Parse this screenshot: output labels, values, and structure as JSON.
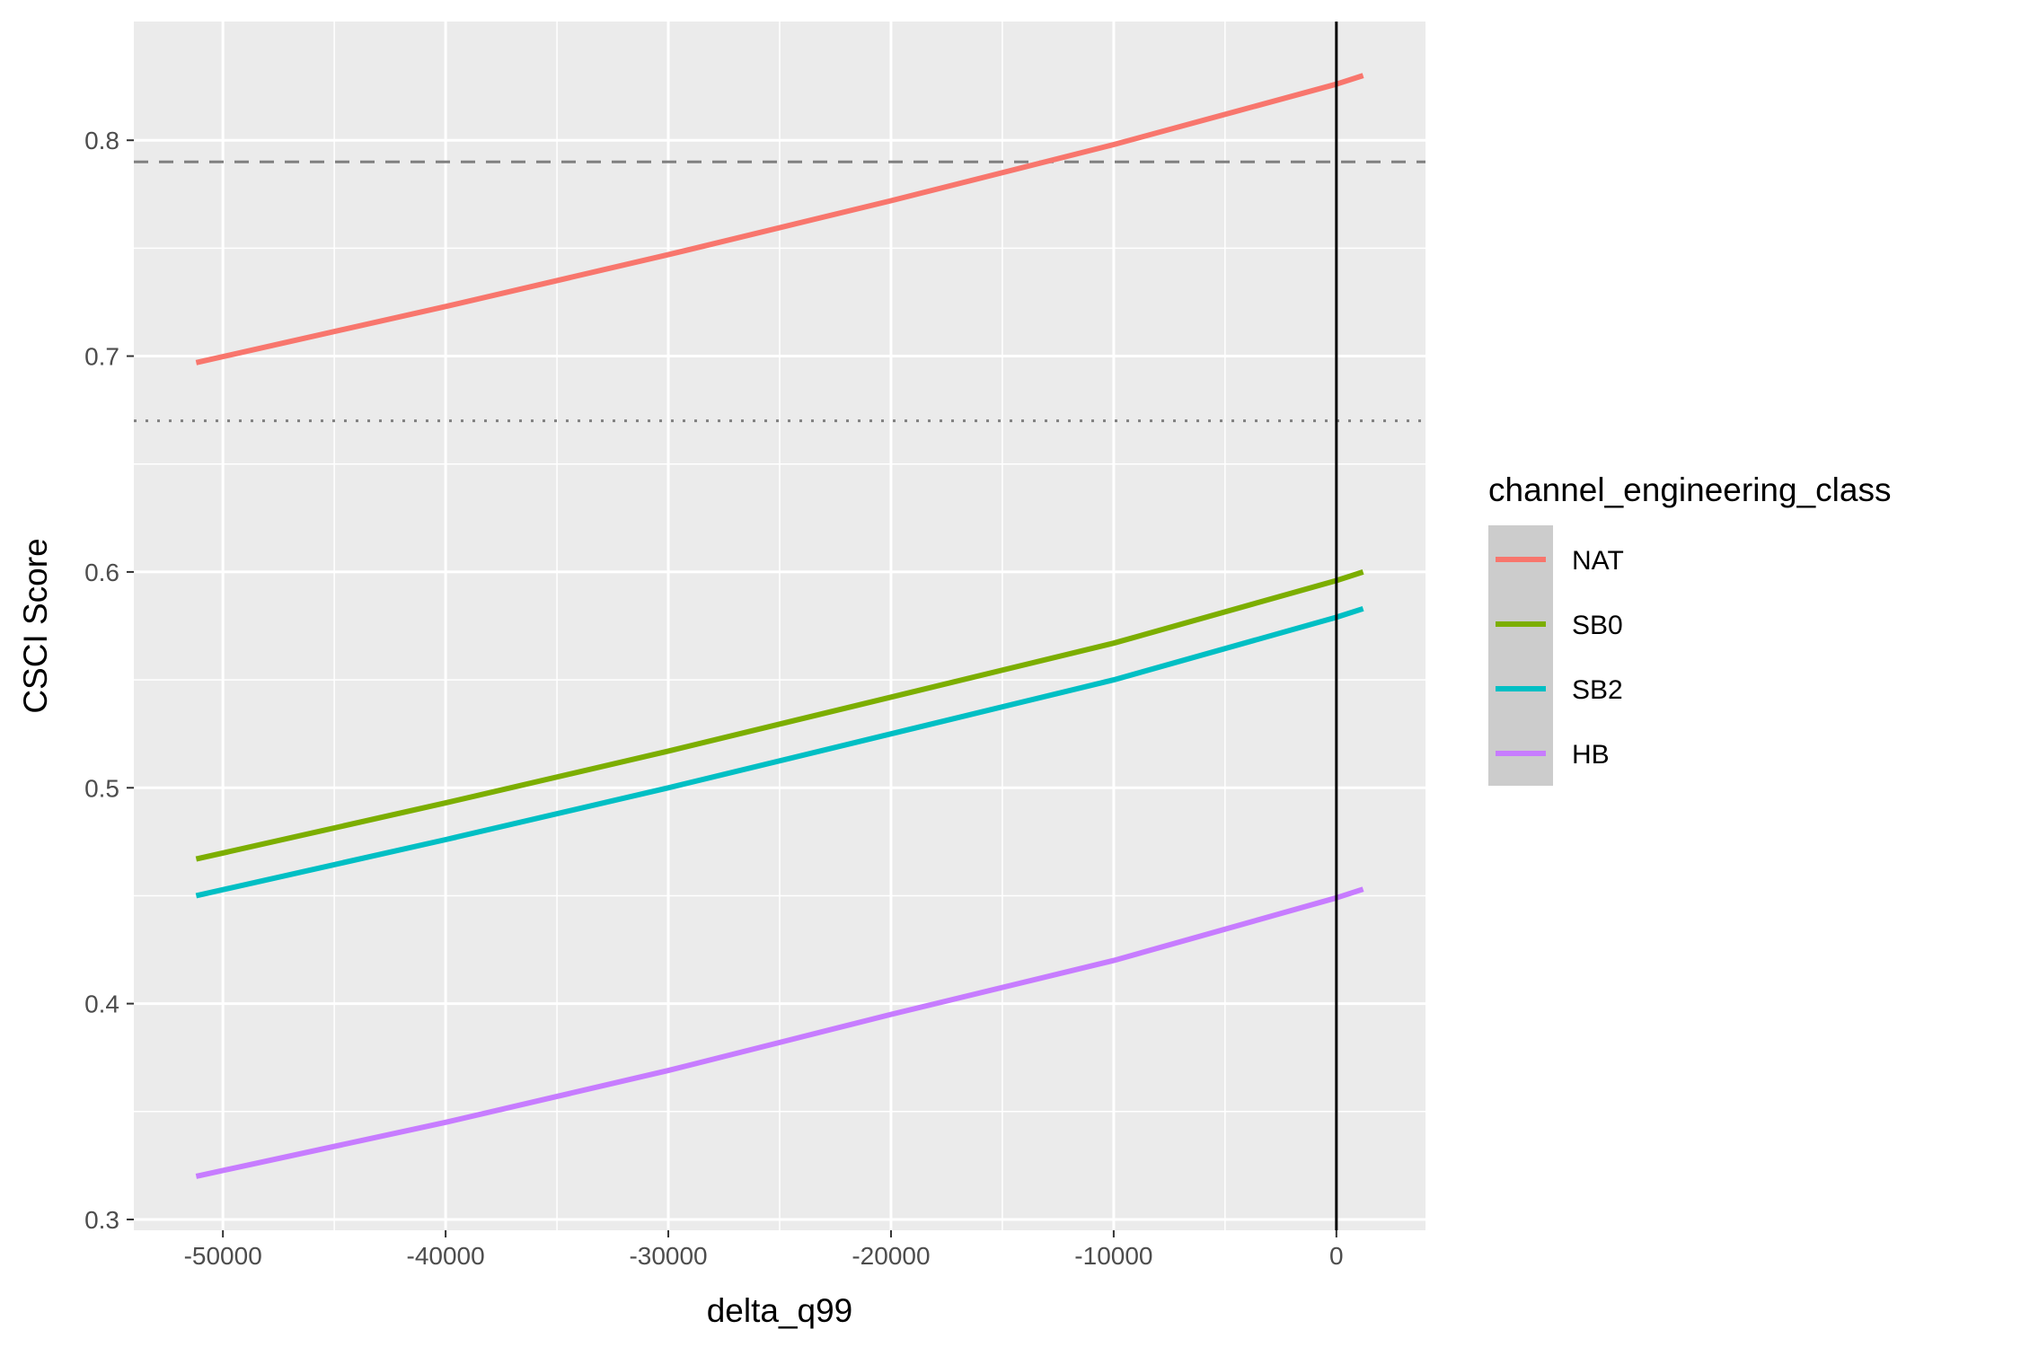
{
  "chart_data": {
    "type": "line",
    "title": "",
    "xlabel": "delta_q99",
    "ylabel": "CSCI Score",
    "xlim": [
      -54000,
      4000
    ],
    "ylim": [
      0.295,
      0.855
    ],
    "x_ticks": [
      -50000,
      -40000,
      -30000,
      -20000,
      -10000,
      0
    ],
    "x_tick_labels": [
      "-50000",
      "-40000",
      "-30000",
      "-20000",
      "-10000",
      "0"
    ],
    "y_ticks": [
      0.3,
      0.4,
      0.5,
      0.6,
      0.7,
      0.8
    ],
    "y_tick_labels": [
      "0.3",
      "0.4",
      "0.5",
      "0.6",
      "0.7",
      "0.8"
    ],
    "grid": true,
    "legend": {
      "title": "channel_engineering_class",
      "placement": "right"
    },
    "series": [
      {
        "name": "NAT",
        "color": "#F8766D",
        "x": [
          -51200,
          -40000,
          -30000,
          -20000,
          -10000,
          0,
          1200
        ],
        "values": [
          0.697,
          0.723,
          0.747,
          0.772,
          0.798,
          0.826,
          0.83
        ]
      },
      {
        "name": "SB0",
        "color": "#7CAE00",
        "x": [
          -51200,
          -40000,
          -30000,
          -20000,
          -10000,
          0,
          1200
        ],
        "values": [
          0.467,
          0.493,
          0.517,
          0.542,
          0.567,
          0.596,
          0.6
        ]
      },
      {
        "name": "SB2",
        "color": "#00BFC4",
        "x": [
          -51200,
          -40000,
          -30000,
          -20000,
          -10000,
          0,
          1200
        ],
        "values": [
          0.45,
          0.476,
          0.5,
          0.525,
          0.55,
          0.579,
          0.583
        ]
      },
      {
        "name": "HB",
        "color": "#C77CFF",
        "x": [
          -51200,
          -40000,
          -30000,
          -20000,
          -10000,
          0,
          1200
        ],
        "values": [
          0.32,
          0.345,
          0.369,
          0.395,
          0.42,
          0.449,
          0.453
        ]
      }
    ],
    "reference_lines": [
      {
        "orientation": "horizontal",
        "value": 0.79,
        "style": "dashed",
        "color": "#808080"
      },
      {
        "orientation": "horizontal",
        "value": 0.67,
        "style": "dotted",
        "color": "#808080"
      },
      {
        "orientation": "vertical",
        "value": 0,
        "style": "solid",
        "color": "#000000"
      }
    ]
  }
}
